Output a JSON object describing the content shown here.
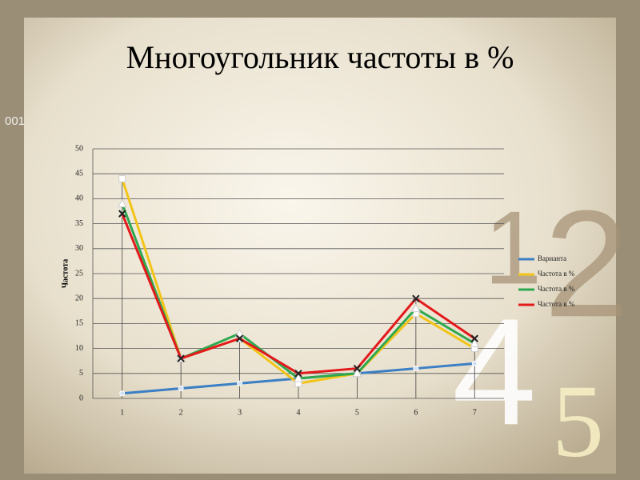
{
  "decor": [
    "001",
    "1",
    "2",
    "4",
    "5"
  ],
  "chart_data": {
    "type": "line",
    "title": "Многоугольник частоты в %",
    "y_label": "Частота",
    "categories": [
      "1",
      "2",
      "3",
      "4",
      "5",
      "6",
      "7"
    ],
    "series": [
      {
        "name": "Варианта",
        "color": "#3b7fc4",
        "marker": "circle",
        "values": [
          1,
          2,
          3,
          4,
          5,
          6,
          7
        ]
      },
      {
        "name": "Частота в %",
        "color": "#f2c418",
        "marker": "square",
        "values": [
          44,
          8,
          12,
          3,
          5,
          17,
          10
        ]
      },
      {
        "name": "Частота в %",
        "color": "#2ea84e",
        "marker": "triangle",
        "values": [
          39,
          8,
          13,
          4,
          5,
          18,
          11
        ]
      },
      {
        "name": "Частота в %",
        "color": "#e3191b",
        "marker": "cross",
        "values": [
          37,
          8,
          12,
          5,
          6,
          20,
          12
        ]
      }
    ],
    "ylim": [
      0,
      50
    ],
    "yticks": [
      0,
      5,
      10,
      15,
      20,
      25,
      30,
      35,
      40,
      45,
      50
    ],
    "grid": true,
    "drop_lines": true,
    "legend": "right"
  }
}
